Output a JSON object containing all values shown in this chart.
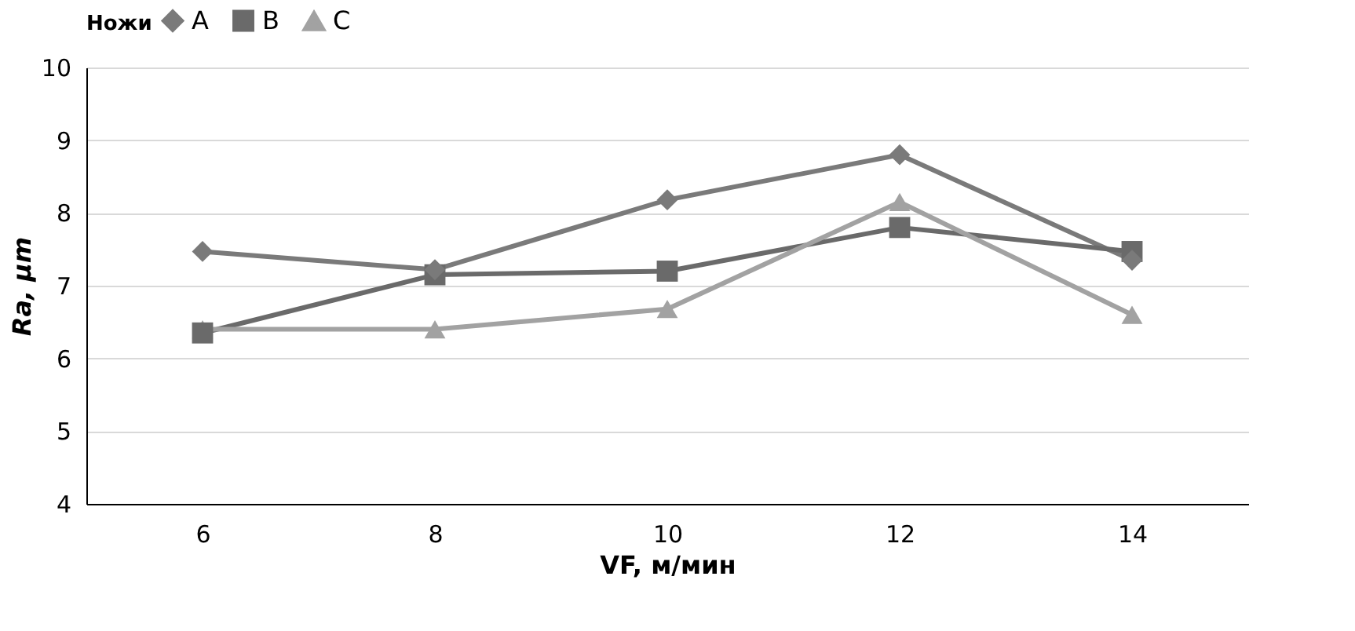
{
  "chart_data": {
    "type": "line",
    "xlabel": "VF, м/мин",
    "ylabel": "Ra, µm",
    "legend_title": "Ножи",
    "categories": [
      "6",
      "8",
      "10",
      "12",
      "14"
    ],
    "series": [
      {
        "name": "A",
        "color": "#7a7a7a",
        "marker": "diamond",
        "values": [
          7.47,
          7.22,
          8.18,
          8.8,
          7.35
        ]
      },
      {
        "name": "B",
        "color": "#6a6a6a",
        "marker": "square",
        "values": [
          6.35,
          7.15,
          7.2,
          7.8,
          7.47
        ]
      },
      {
        "name": "C",
        "color": "#a2a2a2",
        "marker": "triangle",
        "values": [
          6.4,
          6.4,
          6.68,
          8.15,
          6.6
        ]
      }
    ],
    "ylim": [
      4,
      10
    ],
    "yticks": [
      4,
      5,
      6,
      7,
      8,
      9,
      10
    ],
    "grid": "y",
    "legend": "top",
    "line_style": "solid"
  }
}
